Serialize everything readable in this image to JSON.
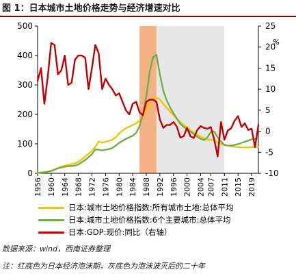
{
  "title": "图 1：日本城市土地价格走势与经济增速对比",
  "source": "数据来源：wind，西南证券整理",
  "note": "注：红底色为日本经济泡沫期，灰底色为泡沫波灭后的二十年",
  "chart_data": {
    "type": "line",
    "title": "图 1：日本城市土地价格走势与经济增速对比",
    "x_ticks": [
      1956,
      1960,
      1964,
      1968,
      1972,
      1976,
      1980,
      1984,
      1988,
      1992,
      1996,
      2000,
      2004,
      2007,
      2011,
      2015,
      2019
    ],
    "xlim": [
      1956,
      2021
    ],
    "ylim_left": [
      0,
      500
    ],
    "ylim_right": [
      -10,
      25
    ],
    "yticks_left": [
      0,
      100,
      200,
      300,
      400,
      500
    ],
    "yticks_right": [
      -10,
      -5,
      0,
      5,
      10,
      15,
      20,
      25
    ],
    "right_axis_unit": "%",
    "shaded_regions": [
      {
        "from": 1986,
        "to": 1991,
        "color": "#f4b183"
      },
      {
        "from": 1991,
        "to": 2011,
        "color": "#e7e7e7"
      }
    ],
    "series": [
      {
        "name": "日本:城市土地价格指数:所有城市土地:总体平均",
        "color": "#f5c400",
        "axis": "left",
        "x": [
          1956,
          1957,
          1958,
          1959,
          1960,
          1961,
          1962,
          1963,
          1964,
          1965,
          1966,
          1967,
          1968,
          1969,
          1970,
          1971,
          1972,
          1973,
          1974,
          1975,
          1976,
          1977,
          1978,
          1979,
          1980,
          1981,
          1982,
          1983,
          1984,
          1985,
          1986,
          1987,
          1988,
          1989,
          1990,
          1991,
          1992,
          1993,
          1994,
          1995,
          1996,
          1997,
          1998,
          1999,
          2000,
          2001,
          2002,
          2003,
          2004,
          2005,
          2006,
          2007,
          2008,
          2009,
          2010,
          2011,
          2012,
          2013,
          2014,
          2015,
          2016,
          2017,
          2018,
          2019,
          2020,
          2021
        ],
        "y": [
          2,
          3,
          4,
          6,
          9,
          13,
          18,
          22,
          26,
          29,
          31,
          34,
          39,
          47,
          57,
          66,
          76,
          90,
          108,
          104,
          107,
          110,
          114,
          122,
          135,
          145,
          153,
          158,
          164,
          170,
          178,
          194,
          214,
          232,
          252,
          258,
          250,
          235,
          222,
          210,
          197,
          184,
          174,
          165,
          155,
          146,
          138,
          131,
          124,
          118,
          114,
          114,
          112,
          104,
          99,
          96,
          94,
          92,
          90,
          89,
          88,
          88,
          88,
          89,
          89,
          90
        ]
      },
      {
        "name": "日本:城市土地价格指数:6个主要城市:总体平均",
        "color": "#70ad47",
        "axis": "left",
        "x": [
          1956,
          1957,
          1958,
          1959,
          1960,
          1961,
          1962,
          1963,
          1964,
          1965,
          1966,
          1967,
          1968,
          1969,
          1970,
          1971,
          1972,
          1973,
          1974,
          1975,
          1976,
          1977,
          1978,
          1979,
          1980,
          1981,
          1982,
          1983,
          1984,
          1985,
          1986,
          1987,
          1988,
          1989,
          1990,
          1991,
          1992,
          1993,
          1994,
          1995,
          1996,
          1997,
          1998,
          1999,
          2000,
          2001,
          2002,
          2003,
          2004,
          2005,
          2006,
          2007,
          2008,
          2009,
          2010,
          2011,
          2012,
          2013,
          2014,
          2015,
          2016,
          2017,
          2018,
          2019,
          2020,
          2021
        ],
        "y": [
          1,
          2,
          3,
          5,
          8,
          12,
          17,
          20,
          22,
          24,
          25,
          26,
          30,
          38,
          45,
          55,
          65,
          81,
          80,
          78,
          80,
          82,
          86,
          94,
          103,
          110,
          117,
          122,
          128,
          137,
          160,
          200,
          260,
          345,
          395,
          402,
          335,
          280,
          248,
          224,
          204,
          186,
          168,
          158,
          149,
          141,
          133,
          124,
          117,
          113,
          122,
          140,
          142,
          122,
          107,
          97,
          94,
          94,
          96,
          99,
          103,
          107,
          111,
          115,
          117,
          120
        ]
      },
      {
        "name": "日本:GDP:现价:同比（右轴）",
        "color": "#c00000",
        "axis": "right",
        "x": [
          1956,
          1957,
          1958,
          1959,
          1960,
          1961,
          1962,
          1963,
          1964,
          1965,
          1966,
          1967,
          1968,
          1969,
          1970,
          1971,
          1972,
          1973,
          1974,
          1975,
          1976,
          1977,
          1978,
          1979,
          1980,
          1981,
          1982,
          1983,
          1984,
          1985,
          1986,
          1987,
          1988,
          1989,
          1990,
          1991,
          1992,
          1993,
          1994,
          1995,
          1996,
          1997,
          1998,
          1999,
          2000,
          2001,
          2002,
          2003,
          2004,
          2005,
          2006,
          2007,
          2008,
          2009,
          2010,
          2011,
          2012,
          2013,
          2014,
          2015,
          2016,
          2017,
          2018,
          2019,
          2020,
          2021
        ],
        "y": [
          12,
          15,
          6.5,
          13,
          21,
          20.5,
          13.5,
          14.5,
          18,
          11,
          11.5,
          17,
          18,
          18,
          17.5,
          10,
          15,
          20.5,
          18.5,
          10,
          12.5,
          11,
          10,
          8.5,
          9,
          7,
          5,
          4,
          6.5,
          7,
          4.5,
          3.8,
          7,
          7.5,
          7.5,
          7,
          2.8,
          0.8,
          1.5,
          1.5,
          2.2,
          1.1,
          -1.5,
          -1.2,
          0.8,
          -1.2,
          -1.6,
          0.3,
          1.2,
          0.8,
          0.6,
          1,
          -2,
          -6,
          2.2,
          -2,
          0.2,
          0.7,
          2.5,
          3.6,
          1,
          1.9,
          0.3,
          0.6,
          -3.8,
          1.5
        ]
      }
    ]
  }
}
